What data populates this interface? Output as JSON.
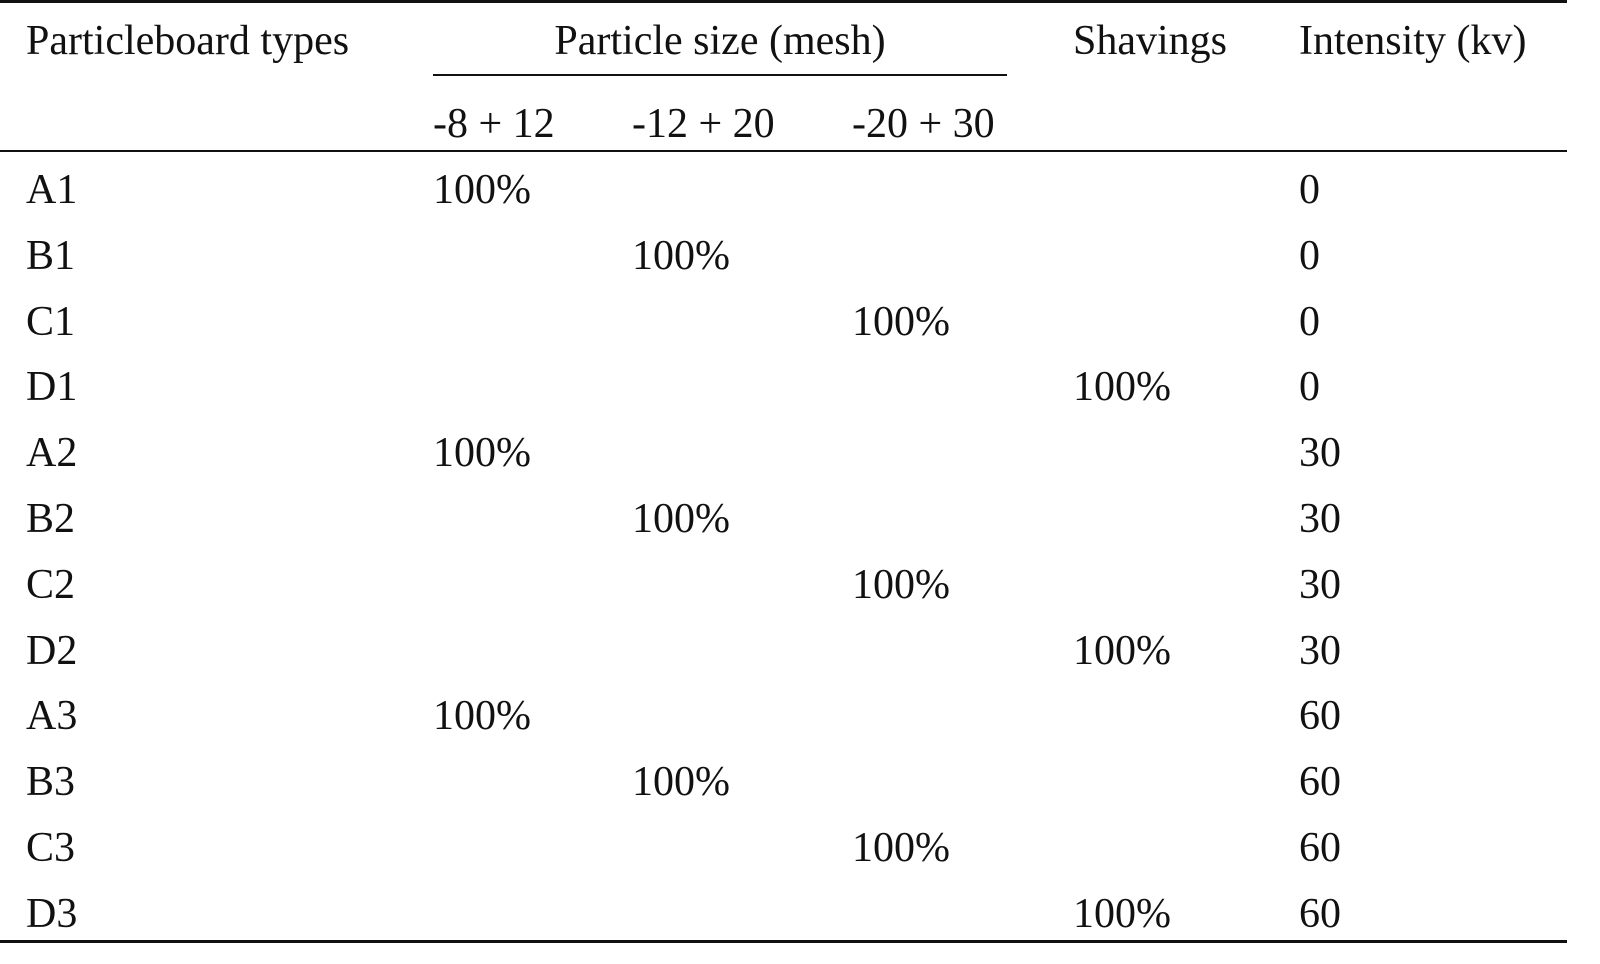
{
  "header": {
    "type": "Particleboard types",
    "particle_size": "Particle size (mesh)",
    "shavings": "Shavings",
    "intensity": "Intensity (kv)",
    "mesh_1": "-8 + 12",
    "mesh_2": "-12 + 20",
    "mesh_3": "-20 + 30"
  },
  "rows": [
    {
      "type": "A1",
      "m1": "100%",
      "m2": "",
      "m3": "",
      "shavings": "",
      "intensity": "0"
    },
    {
      "type": "B1",
      "m1": "",
      "m2": "100%",
      "m3": "",
      "shavings": "",
      "intensity": "0"
    },
    {
      "type": "C1",
      "m1": "",
      "m2": "",
      "m3": "100%",
      "shavings": "",
      "intensity": "0"
    },
    {
      "type": "D1",
      "m1": "",
      "m2": "",
      "m3": "",
      "shavings": "100%",
      "intensity": "0"
    },
    {
      "type": "A2",
      "m1": "100%",
      "m2": "",
      "m3": "",
      "shavings": "",
      "intensity": "30"
    },
    {
      "type": "B2",
      "m1": "",
      "m2": "100%",
      "m3": "",
      "shavings": "",
      "intensity": "30"
    },
    {
      "type": "C2",
      "m1": "",
      "m2": "",
      "m3": "100%",
      "shavings": "",
      "intensity": "30"
    },
    {
      "type": "D2",
      "m1": "",
      "m2": "",
      "m3": "",
      "shavings": "100%",
      "intensity": "30"
    },
    {
      "type": "A3",
      "m1": "100%",
      "m2": "",
      "m3": "",
      "shavings": "",
      "intensity": "60"
    },
    {
      "type": "B3",
      "m1": "",
      "m2": "100%",
      "m3": "",
      "shavings": "",
      "intensity": "60"
    },
    {
      "type": "C3",
      "m1": "",
      "m2": "",
      "m3": "100%",
      "shavings": "",
      "intensity": "60"
    },
    {
      "type": "D3",
      "m1": "",
      "m2": "",
      "m3": "",
      "shavings": "100%",
      "intensity": "60"
    }
  ]
}
